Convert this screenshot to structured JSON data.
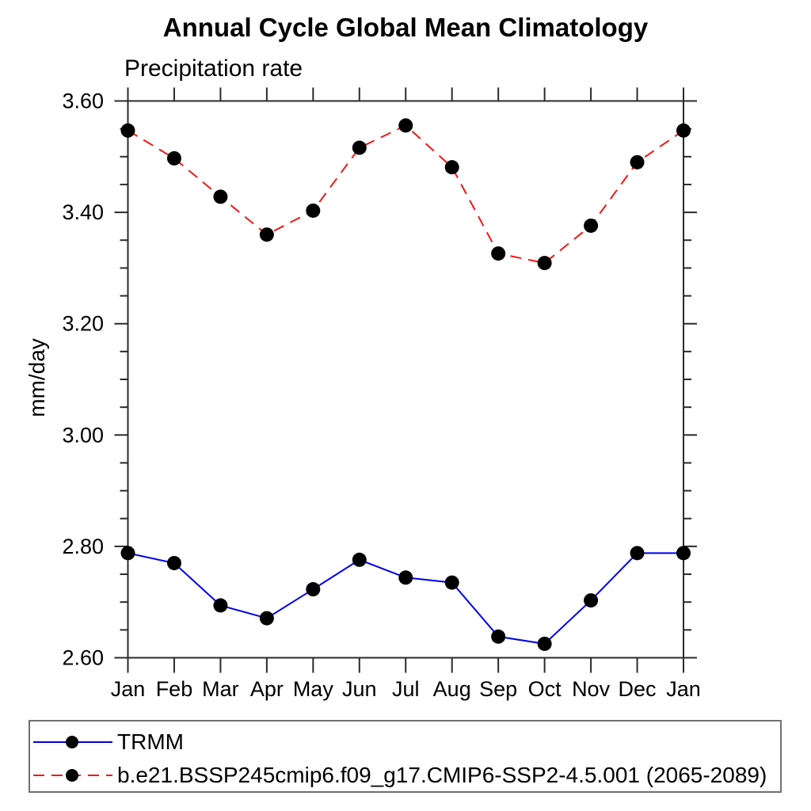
{
  "chart_data": {
    "type": "line",
    "title": "Annual Cycle Global Mean Climatology",
    "subtitle": "Precipitation rate",
    "ylabel": "mm/day",
    "categories": [
      "Jan",
      "Feb",
      "Mar",
      "Apr",
      "May",
      "Jun",
      "Jul",
      "Aug",
      "Sep",
      "Oct",
      "Nov",
      "Dec",
      "Jan"
    ],
    "series": [
      {
        "name": "TRMM",
        "color": "#0000ee",
        "line_style": "solid",
        "marker": "filled-circle",
        "marker_color": "#000000",
        "values": [
          2.788,
          2.77,
          2.694,
          2.671,
          2.723,
          2.776,
          2.744,
          2.735,
          2.638,
          2.625,
          2.703,
          2.788,
          2.788
        ]
      },
      {
        "name": "b.e21.BSSP245cmip6.f09_g17.CMIP6-SSP2-4.5.001 (2065-2089)",
        "color": "#f51515",
        "line_style": "dashed",
        "marker": "filled-circle",
        "marker_color": "#000000",
        "values": [
          3.547,
          3.497,
          3.428,
          3.36,
          3.403,
          3.516,
          3.556,
          3.481,
          3.326,
          3.309,
          3.376,
          3.49,
          3.547
        ]
      }
    ],
    "ylim": [
      2.6,
      3.6
    ],
    "yticks": {
      "values": [
        2.6,
        2.8,
        3.0,
        3.2,
        3.4,
        3.6
      ],
      "labels": [
        "2.60",
        "2.80",
        "3.00",
        "3.20",
        "3.40",
        "3.60"
      ],
      "minor_step": 0.05
    },
    "grid": false,
    "legend_position": "bottom-left-box",
    "axis_color": "#2b2b2b"
  }
}
